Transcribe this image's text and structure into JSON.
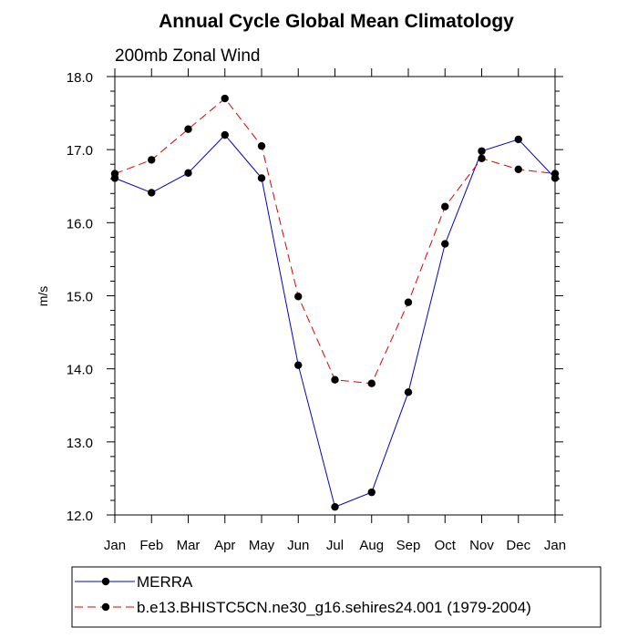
{
  "chart_data": {
    "type": "line",
    "title": "Annual Cycle Global Mean Climatology",
    "subtitle": "200mb Zonal Wind",
    "xlabel": "",
    "ylabel": "m/s",
    "categories": [
      "Jan",
      "Feb",
      "Mar",
      "Apr",
      "May",
      "Jun",
      "Jul",
      "Aug",
      "Sep",
      "Oct",
      "Nov",
      "Dec",
      "Jan"
    ],
    "y_ticks": [
      "12.0",
      "13.0",
      "14.0",
      "15.0",
      "16.0",
      "17.0",
      "18.0"
    ],
    "ylim": [
      12.0,
      18.0
    ],
    "grid": false,
    "legend_position": "bottom",
    "series": [
      {
        "name": "MERRA",
        "color": "#0000cc",
        "line_style": "solid",
        "marker": "filled-circle",
        "values": [
          16.61,
          16.41,
          16.68,
          17.2,
          16.61,
          14.05,
          12.11,
          12.31,
          13.68,
          15.71,
          16.98,
          17.14,
          16.61
        ]
      },
      {
        "name": "b.e13.BHISTC5CN.ne30_g16.sehires24.001 (1979-2004)",
        "color": "#e00000",
        "line_style": "dashed",
        "marker": "filled-circle",
        "values": [
          16.67,
          16.86,
          17.28,
          17.7,
          17.05,
          14.99,
          13.85,
          13.8,
          14.91,
          16.22,
          16.88,
          16.73,
          16.67
        ]
      }
    ]
  }
}
